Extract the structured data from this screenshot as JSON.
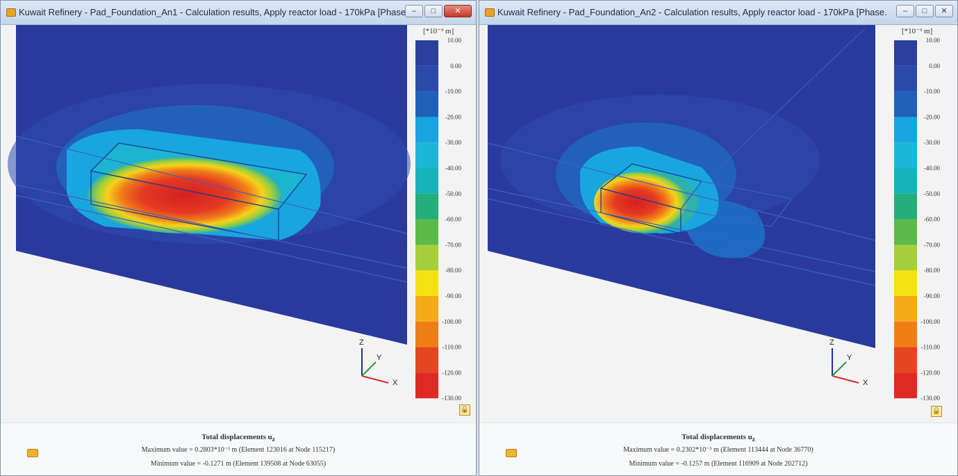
{
  "windows": [
    {
      "id": "an1",
      "title": "Kuwait Refinery - Pad_Foundation_An1 - Calculation results, Apply reactor load - 170kPa [Phase...",
      "legend": {
        "unit": "[*10⁻³ m]",
        "ticks": [
          "10.00",
          "0.00",
          "-10.00",
          "-20.00",
          "-30.00",
          "-40.00",
          "-50.00",
          "-60.00",
          "-70.00",
          "-80.00",
          "-90.00",
          "-100.00",
          "-110.00",
          "-120.00",
          "-130.00"
        ]
      },
      "footer": {
        "heading": "Total displacements u",
        "heading_sub": "z",
        "max_line": "Maximum value = 0.2803*10⁻³ m (Element 123016 at Node 115217)",
        "min_line": "Minimum value = -0.1271 m (Element 139508 at Node 63055)"
      }
    },
    {
      "id": "an2",
      "title": "Kuwait Refinery - Pad_Foundation_An2 - Calculation results, Apply reactor load - 170kPa [Phase...",
      "legend": {
        "unit": "[*10⁻³ m]",
        "ticks": [
          "10.00",
          "0.00",
          "-10.00",
          "-20.00",
          "-30.00",
          "-40.00",
          "-50.00",
          "-60.00",
          "-70.00",
          "-80.00",
          "-90.00",
          "-100.00",
          "-110.00",
          "-120.00",
          "-130.00"
        ]
      },
      "footer": {
        "heading": "Total displacements u",
        "heading_sub": "z",
        "max_line": "Maximum value = 0.2302*10⁻³ m (Element 113444 at Node 36770)",
        "min_line": "Minimum value = -0.1257 m (Element 116909 at Node 202712)"
      }
    }
  ],
  "controls": {
    "minimize": "–",
    "maximize": "□",
    "close": "✕"
  },
  "axes": {
    "x": "X",
    "y": "Y",
    "z": "Z"
  },
  "legend_colors": [
    "#2b3f9e",
    "#2c4aaa",
    "#1f61b8",
    "#17a4e0",
    "#1cb6d9",
    "#18b3b8",
    "#25ad7c",
    "#5bbb48",
    "#a5cf3a",
    "#f3e112",
    "#f4aa18",
    "#ef7e17",
    "#e4461f",
    "#de2a24"
  ],
  "scene_colors": {
    "background_soil": "#28399b",
    "ground_white": "#f3f3f3",
    "accent": "#e8a22a"
  }
}
